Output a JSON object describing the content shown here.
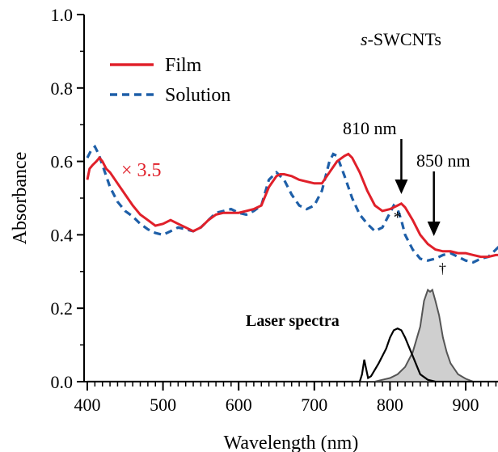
{
  "chart_data": {
    "type": "line",
    "xlabel": "Wavelength (nm)",
    "ylabel": "Absorbance",
    "xlim": [
      395,
      950
    ],
    "ylim": [
      0.0,
      1.0
    ],
    "xticks": [
      400,
      500,
      600,
      700,
      800,
      900
    ],
    "yticks": [
      0.0,
      0.2,
      0.4,
      0.6,
      0.8,
      1.0
    ],
    "ytick_labels": [
      "0.0",
      "0.2",
      "0.4",
      "0.6",
      "0.8",
      "1.0"
    ],
    "legend_position": "top-left",
    "colors": {
      "film": "#e0202a",
      "solution": "#1e5fa8",
      "laser810": "#000000",
      "laser850": "#555555",
      "laser850_fill": "#cfcfcf"
    },
    "series": [
      {
        "name": "Film",
        "style": "solid",
        "x": [
          400,
          403,
          407,
          412,
          416,
          420,
          425,
          430,
          440,
          450,
          460,
          470,
          480,
          490,
          500,
          510,
          520,
          530,
          540,
          550,
          560,
          570,
          580,
          590,
          600,
          610,
          620,
          630,
          640,
          650,
          655,
          660,
          670,
          680,
          690,
          700,
          710,
          720,
          730,
          740,
          745,
          750,
          760,
          770,
          780,
          790,
          800,
          810,
          815,
          820,
          830,
          840,
          850,
          860,
          870,
          880,
          890,
          900,
          910,
          920,
          930,
          940,
          950
        ],
        "y": [
          0.55,
          0.58,
          0.59,
          0.6,
          0.61,
          0.6,
          0.58,
          0.57,
          0.54,
          0.51,
          0.48,
          0.455,
          0.44,
          0.425,
          0.43,
          0.44,
          0.43,
          0.42,
          0.41,
          0.42,
          0.44,
          0.455,
          0.46,
          0.46,
          0.46,
          0.465,
          0.47,
          0.48,
          0.53,
          0.56,
          0.565,
          0.565,
          0.56,
          0.55,
          0.545,
          0.54,
          0.54,
          0.57,
          0.6,
          0.615,
          0.62,
          0.61,
          0.57,
          0.52,
          0.48,
          0.465,
          0.47,
          0.48,
          0.485,
          0.475,
          0.44,
          0.4,
          0.375,
          0.36,
          0.355,
          0.355,
          0.35,
          0.35,
          0.345,
          0.34,
          0.34,
          0.345,
          0.345
        ]
      },
      {
        "name": "Solution",
        "style": "dashed",
        "x": [
          400,
          405,
          410,
          415,
          420,
          430,
          440,
          450,
          460,
          470,
          480,
          490,
          500,
          510,
          520,
          530,
          540,
          550,
          560,
          570,
          580,
          590,
          600,
          610,
          620,
          630,
          640,
          650,
          655,
          660,
          670,
          680,
          690,
          700,
          710,
          720,
          725,
          730,
          740,
          750,
          760,
          770,
          780,
          790,
          800,
          805,
          810,
          815,
          820,
          830,
          840,
          850,
          860,
          870,
          880,
          890,
          900,
          910,
          920,
          930,
          940,
          950
        ],
        "y": [
          0.61,
          0.63,
          0.64,
          0.62,
          0.59,
          0.53,
          0.49,
          0.465,
          0.45,
          0.43,
          0.415,
          0.405,
          0.4,
          0.41,
          0.42,
          0.415,
          0.41,
          0.42,
          0.44,
          0.46,
          0.465,
          0.47,
          0.46,
          0.455,
          0.465,
          0.48,
          0.55,
          0.57,
          0.56,
          0.55,
          0.51,
          0.48,
          0.47,
          0.48,
          0.52,
          0.6,
          0.62,
          0.615,
          0.56,
          0.5,
          0.455,
          0.43,
          0.41,
          0.42,
          0.46,
          0.48,
          0.47,
          0.44,
          0.4,
          0.36,
          0.335,
          0.33,
          0.335,
          0.345,
          0.35,
          0.34,
          0.33,
          0.325,
          0.335,
          0.34,
          0.36,
          0.38
        ]
      },
      {
        "name": "Laser 810",
        "style": "solid",
        "x": [
          400,
          760,
          763,
          766,
          768,
          771,
          775,
          785,
          795,
          800,
          805,
          810,
          815,
          820,
          830,
          840,
          850,
          860,
          870,
          880,
          890,
          900,
          950
        ],
        "y": [
          0.0,
          0.0,
          0.02,
          0.06,
          0.04,
          0.01,
          0.015,
          0.05,
          0.09,
          0.12,
          0.14,
          0.145,
          0.14,
          0.12,
          0.07,
          0.02,
          0.005,
          0.0,
          0.0,
          0.0,
          0.0,
          0.0,
          0.0
        ]
      },
      {
        "name": "Laser 850",
        "style": "filled",
        "x": [
          400,
          780,
          790,
          800,
          810,
          820,
          830,
          840,
          845,
          850,
          853,
          856,
          860,
          865,
          870,
          875,
          880,
          890,
          900,
          910,
          950
        ],
        "y": [
          0.0,
          0.0,
          0.005,
          0.01,
          0.02,
          0.04,
          0.08,
          0.15,
          0.22,
          0.25,
          0.245,
          0.25,
          0.22,
          0.18,
          0.12,
          0.08,
          0.05,
          0.02,
          0.008,
          0.0,
          0.0
        ]
      }
    ],
    "annotations": {
      "sample": "s-SWCNTs",
      "sample_prefix": "s",
      "sample_rest": "-SWCNTs",
      "multiplier": "× 3.5",
      "arrow1_label": "810 nm",
      "arrow2_label": "850 nm",
      "arrow1_x": 815,
      "arrow2_x": 858,
      "asterisk": "*",
      "dagger": "†",
      "laser_label": "Laser spectra"
    }
  }
}
